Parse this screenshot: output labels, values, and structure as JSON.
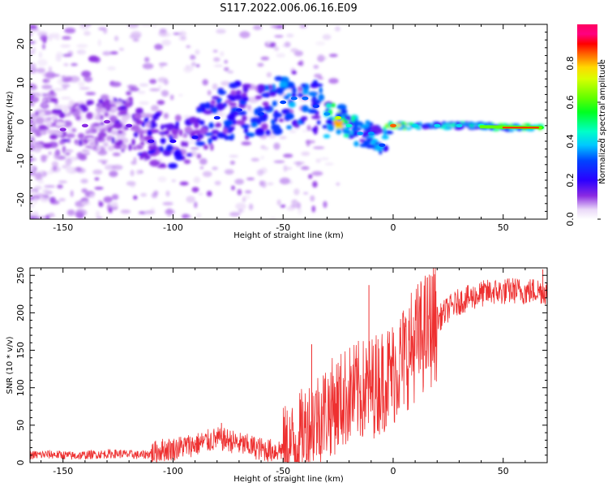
{
  "title": "S117.2022.006.06.16.E09",
  "chart_data": [
    {
      "type": "heatmap",
      "xlabel": "Height of straight line (km)",
      "ylabel": "Frequency (Hz)",
      "xlim": [
        -165,
        70
      ],
      "ylim": [
        -25,
        25
      ],
      "xticks": [
        -150,
        -100,
        -50,
        0,
        50
      ],
      "yticks": [
        -20,
        -10,
        0,
        10,
        20
      ],
      "colorbar": {
        "label": "Normalized spectral amplitude",
        "range": [
          0,
          1
        ],
        "ticks": [
          0.0,
          0.2,
          0.4,
          0.6,
          0.8
        ]
      },
      "ridge": {
        "x": [
          -165,
          -150,
          -140,
          -130,
          -120,
          -110,
          -100,
          -90,
          -80,
          -70,
          -60,
          -50,
          -45,
          -40,
          -35,
          -30,
          -25,
          -20,
          -15,
          -10,
          -5,
          0,
          10,
          20,
          30,
          40,
          50,
          60,
          67
        ],
        "freq": [
          0,
          -2,
          -1,
          0,
          -1,
          -5,
          -5,
          -4,
          1,
          3,
          2,
          5,
          6,
          6,
          4,
          2,
          1,
          -1,
          -3,
          -3,
          -6,
          -1,
          -1,
          -1,
          -1,
          -1,
          -1.5,
          -1.5,
          -1.5
        ],
        "amplitude": [
          0.08,
          0.12,
          0.12,
          0.12,
          0.14,
          0.18,
          0.2,
          0.22,
          0.25,
          0.25,
          0.28,
          0.3,
          0.32,
          0.32,
          0.28,
          0.35,
          0.7,
          0.45,
          0.35,
          0.35,
          0.3,
          0.85,
          0.4,
          0.4,
          0.4,
          0.45,
          0.5,
          0.6,
          0.55
        ]
      }
    },
    {
      "type": "line",
      "xlabel": "Height of straight line (km)",
      "ylabel": "SNR (10 * v/v)",
      "xlim": [
        -165,
        70
      ],
      "ylim": [
        0,
        260
      ],
      "xticks": [
        -150,
        -100,
        -50,
        0,
        50
      ],
      "yticks": [
        0,
        50,
        100,
        150,
        200,
        250
      ],
      "series": [
        {
          "color": "#ee3030",
          "x": [
            -165,
            -155,
            -145,
            -135,
            -125,
            -115,
            -110,
            -105,
            -100,
            -95,
            -90,
            -85,
            -80,
            -75,
            -70,
            -65,
            -60,
            -55,
            -50,
            -45,
            -40,
            -35,
            -30,
            -25,
            -20,
            -15,
            -10,
            -5,
            0,
            5,
            10,
            15,
            20,
            25,
            30,
            35,
            40,
            45,
            50,
            55,
            60,
            65,
            70
          ],
          "y": [
            10,
            11,
            9,
            11,
            12,
            10,
            12,
            17,
            18,
            22,
            24,
            28,
            32,
            30,
            25,
            22,
            18,
            16,
            18,
            25,
            45,
            60,
            70,
            80,
            90,
            95,
            100,
            110,
            120,
            140,
            160,
            175,
            190,
            205,
            215,
            220,
            225,
            228,
            228,
            230,
            228,
            230,
            228
          ]
        }
      ],
      "spikes": [
        {
          "x": -11,
          "y": 237
        },
        {
          "x": -37,
          "y": 158
        },
        {
          "x": -78,
          "y": 53
        },
        {
          "x": 68,
          "y": 258
        }
      ]
    }
  ]
}
